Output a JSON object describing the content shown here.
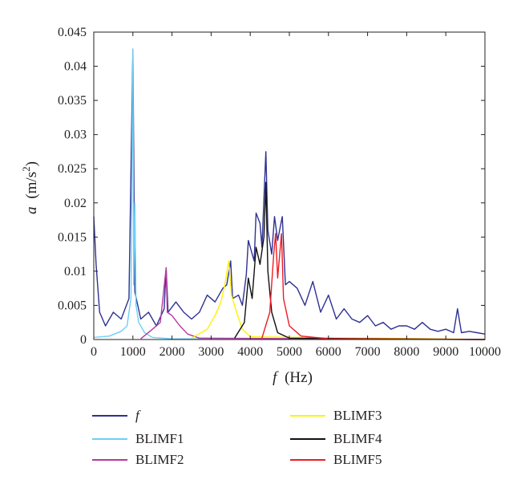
{
  "chart_data": {
    "type": "line",
    "xlabel_var": "f",
    "xlabel_unit": "(Hz)",
    "ylabel_var": "a",
    "ylabel_unit_pre": "(m/s",
    "ylabel_unit_sup": "2",
    "ylabel_unit_post": ")",
    "xlim": [
      0,
      10000
    ],
    "ylim": [
      0,
      0.045
    ],
    "x_ticks": [
      "0",
      "1000",
      "2000",
      "3000",
      "4000",
      "5000",
      "6000",
      "7000",
      "8000",
      "9000",
      "10000"
    ],
    "y_ticks": [
      "0",
      "0.005",
      "0.01",
      "0.015",
      "0.02",
      "0.025",
      "0.03",
      "0.035",
      "0.04",
      "0.045"
    ],
    "grid": false,
    "legend_position": "bottom",
    "series": [
      {
        "name": "f",
        "color": "#2e3192",
        "points": [
          [
            0,
            0.018
          ],
          [
            60,
            0.011
          ],
          [
            150,
            0.004
          ],
          [
            300,
            0.002
          ],
          [
            500,
            0.004
          ],
          [
            700,
            0.003
          ],
          [
            900,
            0.006
          ],
          [
            1000,
            0.0425
          ],
          [
            1050,
            0.007
          ],
          [
            1200,
            0.003
          ],
          [
            1400,
            0.004
          ],
          [
            1600,
            0.002
          ],
          [
            1800,
            0.0045
          ],
          [
            1850,
            0.0105
          ],
          [
            1900,
            0.004
          ],
          [
            2100,
            0.0055
          ],
          [
            2300,
            0.004
          ],
          [
            2500,
            0.003
          ],
          [
            2700,
            0.004
          ],
          [
            2900,
            0.0065
          ],
          [
            3100,
            0.0055
          ],
          [
            3300,
            0.0075
          ],
          [
            3400,
            0.008
          ],
          [
            3500,
            0.0115
          ],
          [
            3550,
            0.006
          ],
          [
            3700,
            0.0065
          ],
          [
            3800,
            0.005
          ],
          [
            3900,
            0.0095
          ],
          [
            3950,
            0.0145
          ],
          [
            4100,
            0.0115
          ],
          [
            4150,
            0.0185
          ],
          [
            4250,
            0.017
          ],
          [
            4300,
            0.0135
          ],
          [
            4400,
            0.0275
          ],
          [
            4450,
            0.016
          ],
          [
            4550,
            0.0125
          ],
          [
            4620,
            0.018
          ],
          [
            4700,
            0.0145
          ],
          [
            4820,
            0.018
          ],
          [
            4900,
            0.008
          ],
          [
            5000,
            0.0085
          ],
          [
            5200,
            0.0075
          ],
          [
            5400,
            0.005
          ],
          [
            5600,
            0.0085
          ],
          [
            5800,
            0.004
          ],
          [
            6000,
            0.0065
          ],
          [
            6200,
            0.003
          ],
          [
            6400,
            0.0045
          ],
          [
            6600,
            0.003
          ],
          [
            6800,
            0.0025
          ],
          [
            7000,
            0.0035
          ],
          [
            7200,
            0.002
          ],
          [
            7400,
            0.0025
          ],
          [
            7600,
            0.0015
          ],
          [
            7800,
            0.002
          ],
          [
            8000,
            0.002
          ],
          [
            8200,
            0.0015
          ],
          [
            8400,
            0.0025
          ],
          [
            8600,
            0.0015
          ],
          [
            8800,
            0.0012
          ],
          [
            9000,
            0.0015
          ],
          [
            9200,
            0.001
          ],
          [
            9300,
            0.0045
          ],
          [
            9400,
            0.001
          ],
          [
            9600,
            0.0012
          ],
          [
            9800,
            0.001
          ],
          [
            10000,
            0.0008
          ]
        ]
      },
      {
        "name": "BLIMF1",
        "color": "#6dcff6",
        "points": [
          [
            0,
            0.0003
          ],
          [
            400,
            0.0005
          ],
          [
            700,
            0.0012
          ],
          [
            850,
            0.002
          ],
          [
            950,
            0.006
          ],
          [
            1000,
            0.0425
          ],
          [
            1020,
            0.008
          ],
          [
            1050,
            0.02
          ],
          [
            1080,
            0.005
          ],
          [
            1150,
            0.0025
          ],
          [
            1300,
            0.001
          ],
          [
            1500,
            0.0003
          ],
          [
            2000,
            0.0001
          ],
          [
            10000,
            0
          ]
        ]
      },
      {
        "name": "BLIMF2",
        "color": "#b23aa0",
        "points": [
          [
            1200,
            0.0001
          ],
          [
            1500,
            0.0015
          ],
          [
            1700,
            0.0025
          ],
          [
            1850,
            0.0105
          ],
          [
            1880,
            0.004
          ],
          [
            2000,
            0.0035
          ],
          [
            2200,
            0.002
          ],
          [
            2400,
            0.0008
          ],
          [
            2700,
            0.0002
          ],
          [
            10000,
            0
          ]
        ]
      },
      {
        "name": "BLIMF3",
        "color": "#fff200",
        "points": [
          [
            2500,
            0.0002
          ],
          [
            2900,
            0.0015
          ],
          [
            3100,
            0.0035
          ],
          [
            3250,
            0.0055
          ],
          [
            3350,
            0.008
          ],
          [
            3450,
            0.0115
          ],
          [
            3520,
            0.0065
          ],
          [
            3650,
            0.004
          ],
          [
            3800,
            0.0015
          ],
          [
            4000,
            0.0004
          ],
          [
            10000,
            0
          ]
        ]
      },
      {
        "name": "BLIMF4",
        "color": "#111111",
        "points": [
          [
            3600,
            0.0002
          ],
          [
            3850,
            0.0025
          ],
          [
            3950,
            0.009
          ],
          [
            4050,
            0.006
          ],
          [
            4150,
            0.0135
          ],
          [
            4250,
            0.011
          ],
          [
            4350,
            0.015
          ],
          [
            4400,
            0.023
          ],
          [
            4450,
            0.01
          ],
          [
            4550,
            0.004
          ],
          [
            4700,
            0.001
          ],
          [
            5000,
            0.0002
          ],
          [
            10000,
            0
          ]
        ]
      },
      {
        "name": "BLIMF5",
        "color": "#ed1c24",
        "points": [
          [
            4300,
            0.0002
          ],
          [
            4500,
            0.004
          ],
          [
            4600,
            0.0125
          ],
          [
            4650,
            0.0155
          ],
          [
            4700,
            0.009
          ],
          [
            4800,
            0.0155
          ],
          [
            4850,
            0.006
          ],
          [
            5000,
            0.002
          ],
          [
            5300,
            0.0005
          ],
          [
            6000,
            0.0001
          ],
          [
            10000,
            0
          ]
        ]
      }
    ]
  }
}
